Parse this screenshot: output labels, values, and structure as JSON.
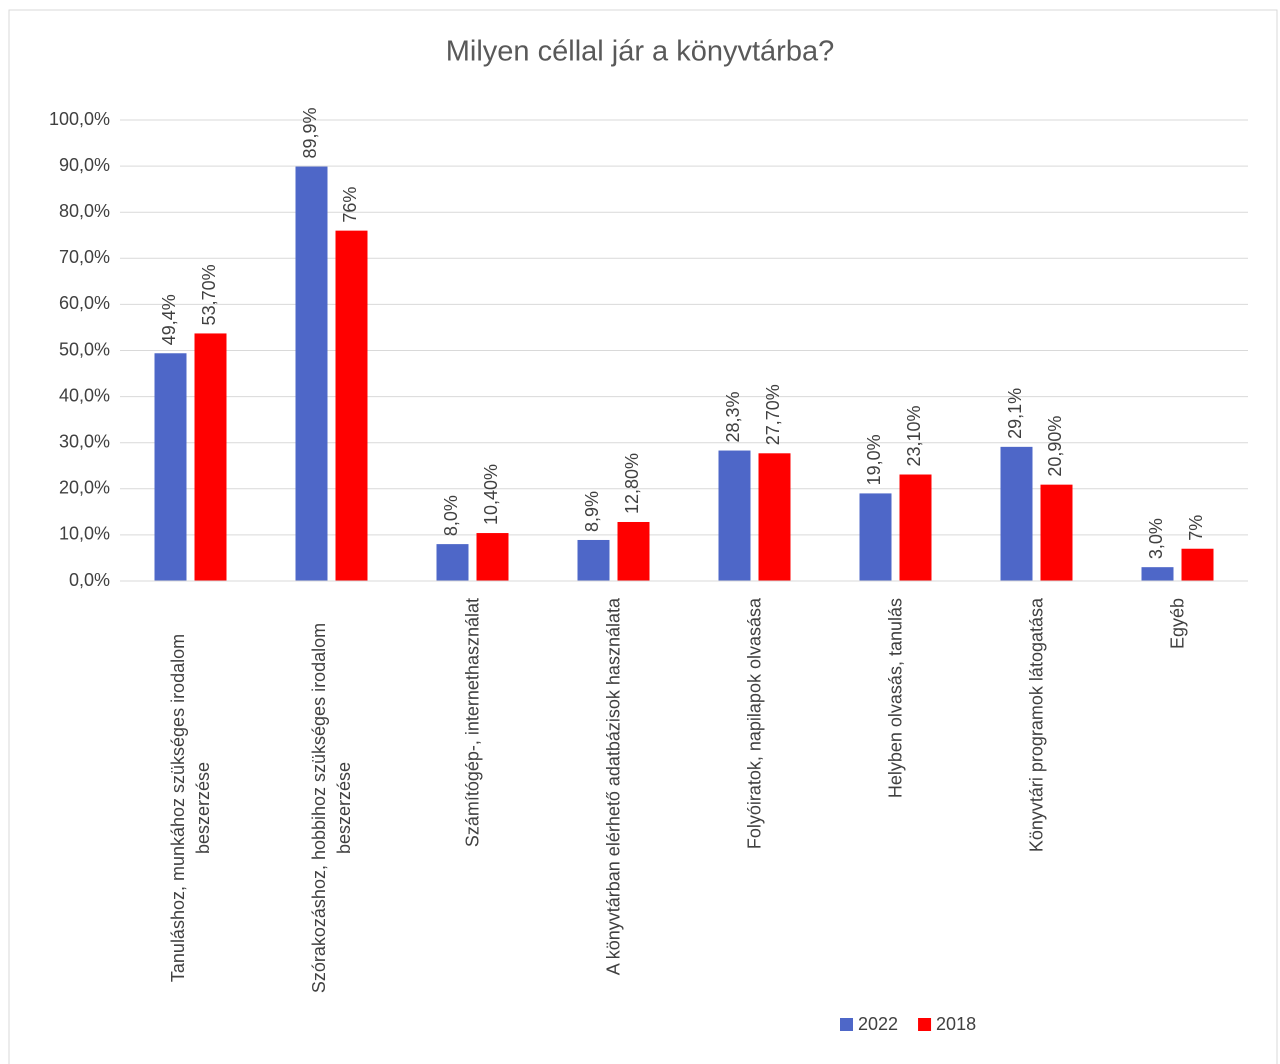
{
  "chart_data": {
    "type": "bar",
    "title": "Milyen céllal jár a könyvtárba?",
    "categories": [
      "Tanuláshoz, munkához szükséges irodalom beszerzése",
      "Szórakozáshoz, hobbihoz szükséges irodalom beszerzése",
      "Számítógép-, internethasználat",
      "A könyvtárban elérhető adatbázisok használata",
      "Folyóiratok, napilapok olvasása",
      "Helyben olvasás, tanulás",
      "Könyvtári programok látogatása",
      "Egyéb"
    ],
    "series": [
      {
        "name": "2022",
        "color": "#4e67c8",
        "values": [
          49.4,
          89.9,
          8.0,
          8.9,
          28.3,
          19.0,
          29.1,
          3.0
        ],
        "value_labels": [
          "49,4%",
          "89,9%",
          "8,0%",
          "8,9%",
          "28,3%",
          "19,0%",
          "29,1%",
          "3,0%"
        ]
      },
      {
        "name": "2018",
        "color": "#ff0000",
        "values": [
          53.7,
          76,
          10.4,
          12.8,
          27.7,
          23.1,
          20.9,
          7
        ],
        "value_labels": [
          "53,70%",
          "76%",
          "10,40%",
          "12,80%",
          "27,70%",
          "23,10%",
          "20,90%",
          "7%"
        ]
      }
    ],
    "ylim": [
      0,
      100
    ],
    "yticks": [
      {
        "value": 0,
        "label": "0,0%"
      },
      {
        "value": 10,
        "label": "10,0%"
      },
      {
        "value": 20,
        "label": "20,0%"
      },
      {
        "value": 30,
        "label": "30,0%"
      },
      {
        "value": 40,
        "label": "40,0%"
      },
      {
        "value": 50,
        "label": "50,0%"
      },
      {
        "value": 60,
        "label": "60,0%"
      },
      {
        "value": 70,
        "label": "70,0%"
      },
      {
        "value": 80,
        "label": "80,0%"
      },
      {
        "value": 90,
        "label": "90,0%"
      },
      {
        "value": 100,
        "label": "100,0%"
      }
    ],
    "grid": true,
    "legend": "bottom"
  }
}
